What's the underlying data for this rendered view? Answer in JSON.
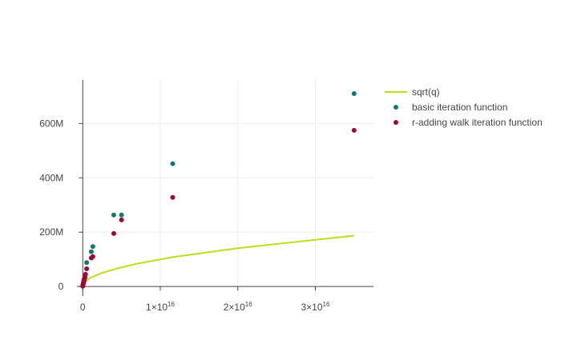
{
  "chart_data": {
    "type": "line+scatter",
    "title": "",
    "xlabel": "",
    "ylabel": "",
    "xlim": [
      -2200000000000000.0,
      3.75e+16
    ],
    "ylim": [
      -35000000.0,
      760000000.0
    ],
    "grid": true,
    "legend_position": "top-right",
    "x_ticks": [
      {
        "value": 0,
        "label": "0",
        "exp": ""
      },
      {
        "value": 1e+16,
        "label": "1×10",
        "exp": "16"
      },
      {
        "value": 2e+16,
        "label": "2×10",
        "exp": "16"
      },
      {
        "value": 3e+16,
        "label": "3×10",
        "exp": "16"
      }
    ],
    "y_ticks": [
      {
        "value": 0,
        "label": "0"
      },
      {
        "value": 200000000.0,
        "label": "200M"
      },
      {
        "value": 400000000.0,
        "label": "400M"
      },
      {
        "value": 600000000.0,
        "label": "600M"
      }
    ],
    "series": [
      {
        "name": "sqrt(q)",
        "kind": "line",
        "color": "#bcdf1a",
        "x": [
          0,
          10000000000000.0,
          100000000000000.0,
          500000000000000.0,
          1000000000000000.0,
          2500000000000000.0,
          4500000000000000.0,
          7000000000000000.0,
          1.16e+16,
          2e+16,
          3.5e+16
        ],
        "y": [
          0,
          3200000.0,
          10000000.0,
          22000000.0,
          32000000.0,
          50000000.0,
          67000000.0,
          84000000.0,
          108000000.0,
          141000000.0,
          187000000.0
        ]
      },
      {
        "name": "basic iteration function",
        "kind": "scatter",
        "color": "#107a6c",
        "x": [
          0,
          10000000000000.0,
          30000000000000.0,
          50000000000000.0,
          80000000000000.0,
          120000000000000.0,
          200000000000000.0,
          300000000000000.0,
          500000000000000.0,
          1100000000000000.0,
          1300000000000000.0,
          4000000000000000.0,
          5000000000000000.0,
          1.16e+16,
          3.5e+16
        ],
        "y": [
          1500000.0,
          4000000.0,
          6000000.0,
          9000000.0,
          12000000.0,
          16000000.0,
          22000000.0,
          33000000.0,
          88000000.0,
          128000000.0,
          147000000.0,
          263000000.0,
          263000000.0,
          452000000.0,
          710000000.0
        ]
      },
      {
        "name": "r-adding walk iteration function",
        "kind": "scatter",
        "color": "#a0063b",
        "x": [
          0,
          10000000000000.0,
          20000000000000.0,
          30000000000000.0,
          50000000000000.0,
          80000000000000.0,
          120000000000000.0,
          180000000000000.0,
          250000000000000.0,
          350000000000000.0,
          500000000000000.0,
          1100000000000000.0,
          1300000000000000.0,
          4000000000000000.0,
          5000000000000000.0,
          1.16e+16,
          3.5e+16
        ],
        "y": [
          1000000.0,
          3000000.0,
          5000000.0,
          7000000.0,
          10000000.0,
          14000000.0,
          20000000.0,
          26000000.0,
          33000000.0,
          45000000.0,
          65000000.0,
          105000000.0,
          110000000.0,
          195000000.0,
          245000000.0,
          328000000.0,
          575000000.0
        ]
      }
    ]
  }
}
